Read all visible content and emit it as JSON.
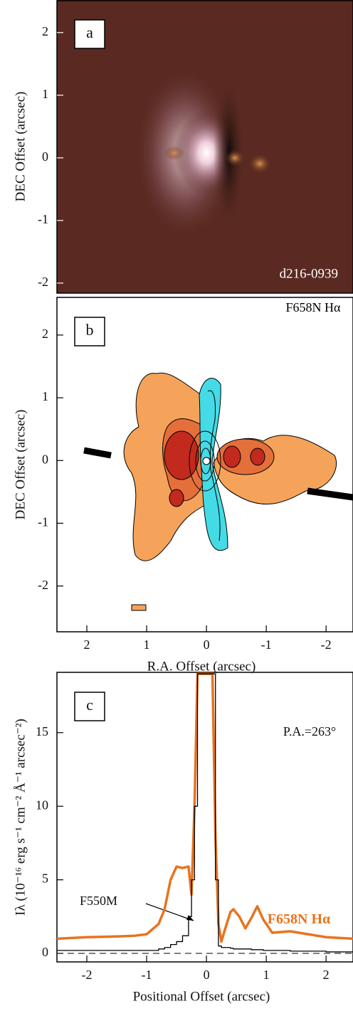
{
  "chart_data": [
    {
      "type": "image",
      "panel_label": "a",
      "annotations": [
        "d216-0939"
      ],
      "ylabel": "DEC Offset (arcsec)",
      "ylim": [
        -2.16,
        2.52
      ],
      "yticks": [
        2,
        1,
        0,
        -1,
        -2
      ]
    },
    {
      "type": "contour",
      "panel_label": "b",
      "annotations": [
        "F658N Hα"
      ],
      "ylabel": "DEC Offset (arcsec)",
      "xlabel": "R.A. Offset (arcsec)",
      "xlim": [
        2.5,
        -2.45
      ],
      "xticks": [
        2,
        1,
        0,
        -1,
        -2
      ],
      "ylim": [
        -2.73,
        2.6
      ],
      "yticks": [
        2,
        1,
        0,
        -1,
        -2
      ]
    },
    {
      "type": "line",
      "panel_label": "c",
      "annotations": [
        "P.A.=263°"
      ],
      "ylabel": "Iλ (10⁻¹⁶ erg s⁻¹ cm⁻² Å⁻¹ arcsec⁻²)",
      "xlabel": "Positional Offset (arcsec)",
      "xlim": [
        -2.5,
        2.45
      ],
      "xticks": [
        -2,
        -1,
        0,
        1,
        2
      ],
      "ylim": [
        -0.58,
        19.1
      ],
      "yticks": [
        0,
        5,
        10,
        15
      ],
      "reference_line": 0,
      "x": [
        -2.5,
        -2,
        -1.5,
        -1.2,
        -1,
        -0.8,
        -0.7,
        -0.6,
        -0.5,
        -0.4,
        -0.3,
        -0.25,
        -0.2,
        -0.15,
        0.1,
        0.15,
        0.2,
        0.25,
        0.3,
        0.4,
        0.45,
        0.55,
        0.65,
        0.75,
        0.85,
        0.95,
        1.1,
        1.4,
        1.7,
        2,
        2.45
      ],
      "series": [
        {
          "name": "F658N Hα",
          "color": "#e8731f",
          "step": false,
          "values": [
            1.0,
            1.1,
            1.15,
            1.2,
            1.3,
            2,
            3,
            5,
            5.9,
            5.8,
            5.9,
            4,
            10,
            19,
            19,
            8,
            2,
            0.8,
            1.5,
            2.8,
            3,
            2.5,
            1.7,
            2.4,
            3.2,
            2.3,
            1.4,
            1.5,
            1.3,
            1.1,
            1.0
          ]
        },
        {
          "name": "F550M",
          "color": "#000000",
          "step": true,
          "values": [
            0.2,
            0.2,
            0.2,
            0.2,
            0.2,
            0.3,
            0.4,
            0.6,
            0.8,
            1.2,
            2.5,
            5,
            10,
            19,
            19,
            5,
            0.5,
            0.4,
            0.4,
            0.35,
            0.3,
            0.3,
            0.3,
            0.25,
            0.25,
            0.2,
            0.2,
            0.15,
            0.15,
            0.1,
            0.1
          ]
        }
      ]
    }
  ]
}
